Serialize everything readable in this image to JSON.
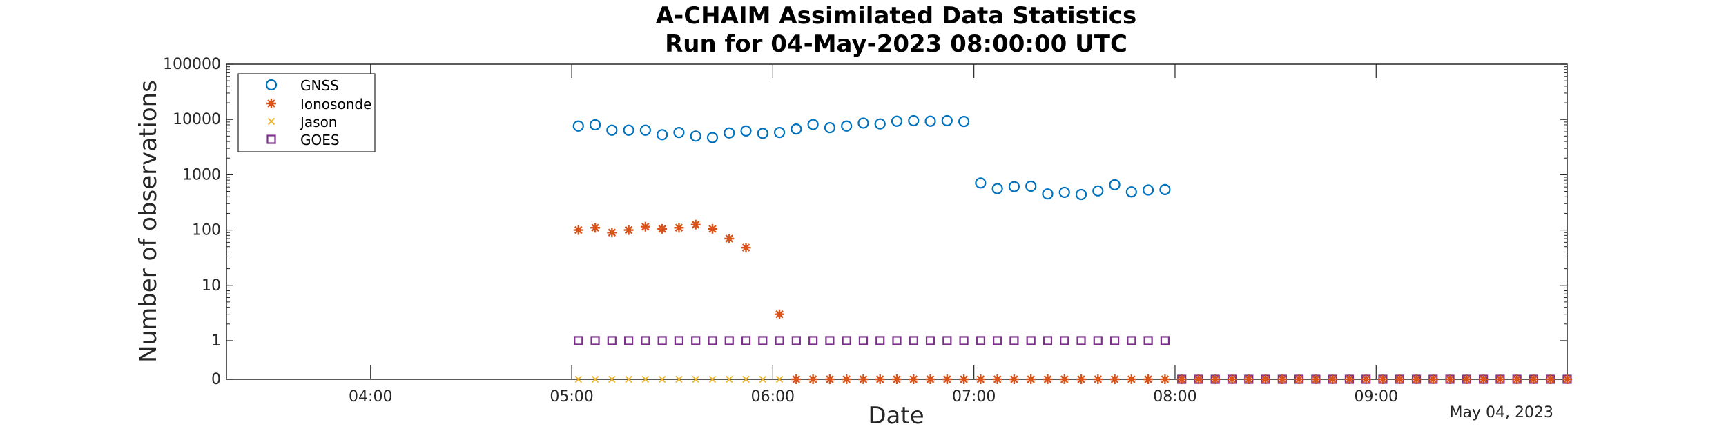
{
  "chart_data": {
    "type": "scatter",
    "title": [
      "A-CHAIM Assimilated Data Statistics",
      "Run for 04-May-2023 08:00:00 UTC"
    ],
    "xlabel": "Date",
    "ylabel": "Number of observations",
    "x_date_label": "May 04, 2023",
    "y_scale": "log",
    "ylim": [
      0.2,
      100000
    ],
    "y_ticks": [
      {
        "value": 100000,
        "label": "100000"
      },
      {
        "value": 10000,
        "label": "10000"
      },
      {
        "value": 1000,
        "label": "1000"
      },
      {
        "value": 100,
        "label": "100"
      },
      {
        "value": 10,
        "label": "10"
      },
      {
        "value": 1,
        "label": "1"
      },
      {
        "value": 0.2,
        "label": "0"
      }
    ],
    "xlim": [
      "03:17",
      "09:57"
    ],
    "x_ticks": [
      "04:00",
      "05:00",
      "06:00",
      "07:00",
      "08:00",
      "09:00"
    ],
    "legend": {
      "position": "top-left"
    },
    "series": [
      {
        "name": "GNSS",
        "marker": "circle",
        "color": "#0072BD",
        "x": [
          "05:02",
          "05:07",
          "05:12",
          "05:17",
          "05:22",
          "05:27",
          "05:32",
          "05:37",
          "05:42",
          "05:47",
          "05:52",
          "05:57",
          "06:02",
          "06:07",
          "06:12",
          "06:17",
          "06:22",
          "06:27",
          "06:32",
          "06:37",
          "06:42",
          "06:47",
          "06:52",
          "06:57",
          "07:02",
          "07:07",
          "07:12",
          "07:17",
          "07:22",
          "07:27",
          "07:32",
          "07:37",
          "07:42",
          "07:47",
          "07:52",
          "07:57"
        ],
        "y": [
          7600,
          8000,
          6400,
          6400,
          6400,
          5300,
          5800,
          5000,
          4700,
          5700,
          6200,
          5600,
          5800,
          6700,
          8100,
          7100,
          7600,
          8600,
          8300,
          9300,
          9500,
          9300,
          9500,
          9200,
          710,
          560,
          610,
          620,
          450,
          480,
          440,
          510,
          660,
          490,
          530,
          540
        ]
      },
      {
        "name": "Ionosonde",
        "marker": "asterisk",
        "color": "#D95319",
        "x": [
          "05:02",
          "05:07",
          "05:12",
          "05:17",
          "05:22",
          "05:27",
          "05:32",
          "05:37",
          "05:42",
          "05:47",
          "05:52",
          "05:57",
          "06:02",
          "06:07",
          "06:12",
          "06:17",
          "06:22",
          "06:27",
          "06:32",
          "06:37",
          "06:42",
          "06:47",
          "06:52",
          "06:57",
          "07:02",
          "07:07",
          "07:12",
          "07:17",
          "07:22",
          "07:27",
          "07:32",
          "07:37",
          "07:42",
          "07:47",
          "07:52",
          "07:57",
          "08:02",
          "08:07",
          "08:12",
          "08:17",
          "08:22",
          "08:27",
          "08:32",
          "08:37",
          "08:42",
          "08:47",
          "08:52",
          "08:57",
          "09:02",
          "09:07",
          "09:12",
          "09:17",
          "09:22",
          "09:27",
          "09:32",
          "09:37",
          "09:42",
          "09:47",
          "09:52",
          "09:57"
        ],
        "y": [
          100,
          110,
          90,
          100,
          115,
          105,
          110,
          125,
          105,
          70,
          48,
          null,
          3,
          0,
          0,
          0,
          0,
          0,
          0,
          0,
          0,
          0,
          0,
          0,
          0,
          0,
          0,
          0,
          0,
          0,
          0,
          0,
          0,
          0,
          0,
          0,
          0,
          0,
          0,
          0,
          0,
          0,
          0,
          0,
          0,
          0,
          0,
          0,
          0,
          0,
          0,
          0,
          0,
          0,
          0,
          0,
          0,
          0,
          0,
          0
        ]
      },
      {
        "name": "Jason",
        "marker": "x",
        "color": "#EDB120",
        "x": [
          "05:02",
          "05:07",
          "05:12",
          "05:17",
          "05:22",
          "05:27",
          "05:32",
          "05:37",
          "05:42",
          "05:47",
          "05:52",
          "05:57",
          "06:02",
          "06:07",
          "06:12",
          "06:17",
          "06:22",
          "06:27",
          "06:32",
          "06:37",
          "06:42",
          "06:47",
          "06:52",
          "06:57",
          "07:02",
          "07:07",
          "07:12",
          "07:17",
          "07:22",
          "07:27",
          "07:32",
          "07:37",
          "07:42",
          "07:47",
          "07:52",
          "07:57",
          "08:02",
          "08:07",
          "08:12",
          "08:17",
          "08:22",
          "08:27",
          "08:32",
          "08:37",
          "08:42",
          "08:47",
          "08:52",
          "08:57",
          "09:02",
          "09:07",
          "09:12",
          "09:17",
          "09:22",
          "09:27",
          "09:32",
          "09:37",
          "09:42",
          "09:47",
          "09:52",
          "09:57"
        ],
        "y": [
          0,
          0,
          0,
          0,
          0,
          0,
          0,
          0,
          0,
          0,
          0,
          0,
          0,
          0,
          0,
          0,
          0,
          0,
          0,
          0,
          0,
          0,
          0,
          0,
          0,
          0,
          0,
          0,
          0,
          0,
          0,
          0,
          0,
          0,
          0,
          0,
          0,
          0,
          0,
          0,
          0,
          0,
          0,
          0,
          0,
          0,
          0,
          0,
          0,
          0,
          0,
          0,
          0,
          0,
          0,
          0,
          0,
          0,
          0,
          0
        ]
      },
      {
        "name": "GOES",
        "marker": "square",
        "color": "#7E2F8E",
        "x": [
          "05:02",
          "05:07",
          "05:12",
          "05:17",
          "05:22",
          "05:27",
          "05:32",
          "05:37",
          "05:42",
          "05:47",
          "05:52",
          "05:57",
          "06:02",
          "06:07",
          "06:12",
          "06:17",
          "06:22",
          "06:27",
          "06:32",
          "06:37",
          "06:42",
          "06:47",
          "06:52",
          "06:57",
          "07:02",
          "07:07",
          "07:12",
          "07:17",
          "07:22",
          "07:27",
          "07:32",
          "07:37",
          "07:42",
          "07:47",
          "07:52",
          "07:57",
          "08:02",
          "08:07",
          "08:12",
          "08:17",
          "08:22",
          "08:27",
          "08:32",
          "08:37",
          "08:42",
          "08:47",
          "08:52",
          "08:57",
          "09:02",
          "09:07",
          "09:12",
          "09:17",
          "09:22",
          "09:27",
          "09:32",
          "09:37",
          "09:42",
          "09:47",
          "09:52",
          "09:57"
        ],
        "y": [
          1,
          1,
          1,
          1,
          1,
          1,
          1,
          1,
          1,
          1,
          1,
          1,
          1,
          1,
          1,
          1,
          1,
          1,
          1,
          1,
          1,
          1,
          1,
          1,
          1,
          1,
          1,
          1,
          1,
          1,
          1,
          1,
          1,
          1,
          1,
          1,
          0,
          0,
          0,
          0,
          0,
          0,
          0,
          0,
          0,
          0,
          0,
          0,
          0,
          0,
          0,
          0,
          0,
          0,
          0,
          0,
          0,
          0,
          0,
          0
        ]
      }
    ]
  }
}
